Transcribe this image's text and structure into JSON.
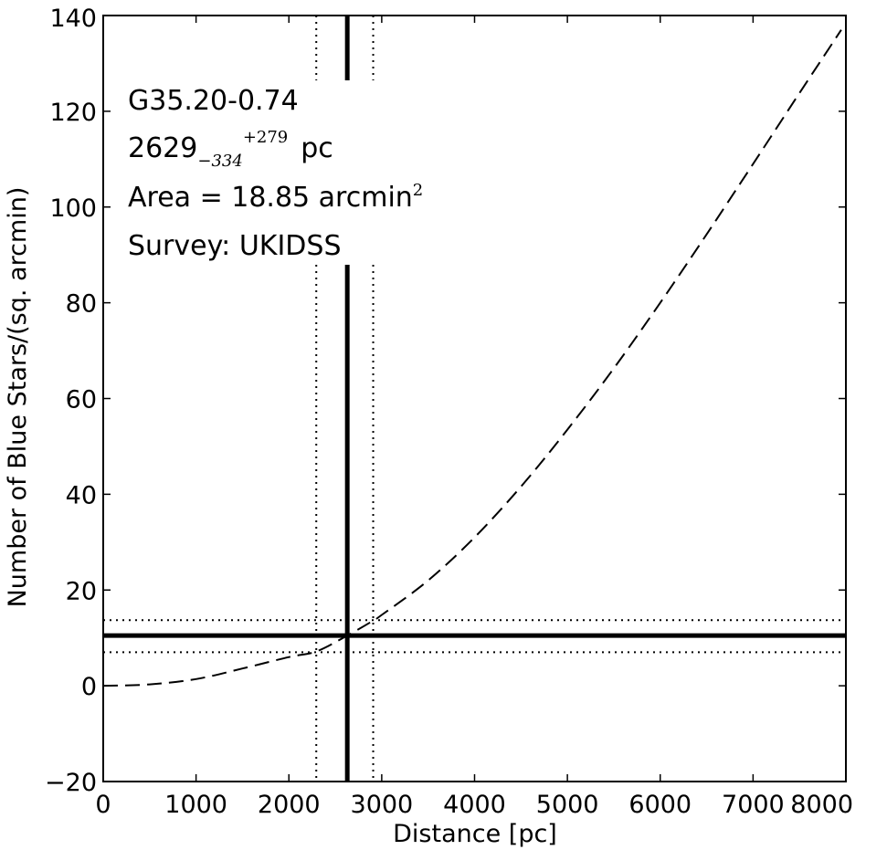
{
  "chart_data": {
    "type": "line",
    "title": "",
    "xlabel": "Distance [pc]",
    "ylabel": "Number of Blue Stars/(sq. arcmin)",
    "xlim": [
      0,
      8000
    ],
    "ylim": [
      -20,
      140
    ],
    "xticks": [
      0,
      1000,
      2000,
      3000,
      4000,
      5000,
      6000,
      7000,
      8000
    ],
    "xtick_labels": [
      "0",
      "1000",
      "2000",
      "3000",
      "4000",
      "5000",
      "6000",
      "7000",
      "8000"
    ],
    "yticks": [
      -20,
      0,
      20,
      40,
      60,
      80,
      100,
      120,
      140
    ],
    "ytick_labels": [
      "−20",
      "0",
      "20",
      "40",
      "60",
      "80",
      "100",
      "120",
      "140"
    ],
    "grid": false,
    "series": [
      {
        "style": "dashed",
        "color": "#000000",
        "x": [
          0,
          500,
          1000,
          1500,
          2000,
          2300,
          2629,
          2908,
          3000,
          3500,
          4000,
          4500,
          5000,
          5500,
          6000,
          6500,
          7000,
          7500,
          7950
        ],
        "y": [
          0,
          0.3,
          1.4,
          3.6,
          6.0,
          7.2,
          10.5,
          13.6,
          14.8,
          22.0,
          31.0,
          41.6,
          53.5,
          66.3,
          80.0,
          94.3,
          109.0,
          123.8,
          137.0
        ]
      }
    ],
    "reference_lines": {
      "distance": {
        "value": 2629,
        "lower": 2295,
        "upper": 2908
      },
      "density": {
        "value": 10.5,
        "lower": 7.0,
        "upper": 13.7
      }
    },
    "annotation": {
      "cloud_name": "G35.20-0.74",
      "distance_value": "2629",
      "distance_minus": "−334",
      "distance_plus": "+279",
      "distance_unit": "pc",
      "area_text": "Area = 18.85 arcmin",
      "area_exponent": "2",
      "survey_text": "Survey: UKIDSS"
    }
  }
}
